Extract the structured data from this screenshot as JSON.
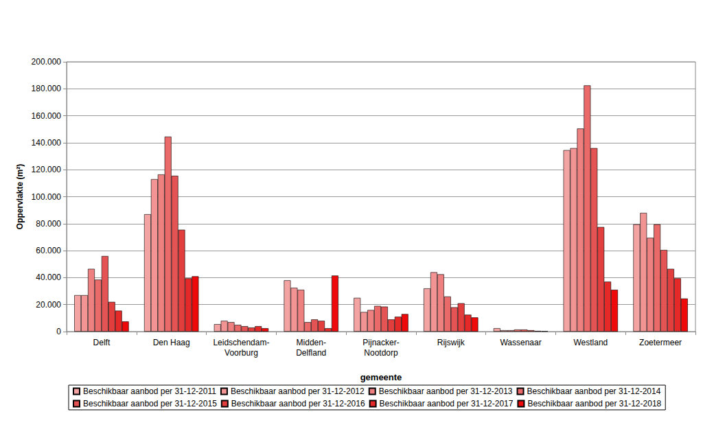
{
  "chart_data": {
    "type": "bar",
    "x_label": "gemeente",
    "y_label": "Oppervlakte (m²)",
    "categories": [
      "Delft",
      "Den Haag",
      "Leidschendam-\nVoorburg",
      "Midden-\nDelfland",
      "Pijnacker-\nNootdorp",
      "Rijswijk",
      "Wassenaar",
      "Westland",
      "Zoetermeer"
    ],
    "series": [
      {
        "name": "Beschikbaar aanbod per 31-12-2011",
        "color": "#f4a3a3",
        "values": [
          27000,
          87000,
          5500,
          38000,
          25000,
          32000,
          2500,
          134500,
          79500
        ]
      },
      {
        "name": "Beschikbaar aanbod per 31-12-2012",
        "color": "#f29494",
        "values": [
          27000,
          113000,
          8000,
          32500,
          14500,
          44000,
          1000,
          136000,
          88000
        ]
      },
      {
        "name": "Beschikbaar aanbod per 31-12-2013",
        "color": "#ee8080",
        "values": [
          46500,
          116500,
          7000,
          31000,
          16000,
          42500,
          1000,
          150500,
          69500
        ]
      },
      {
        "name": "Beschikbaar aanbod per 31-12-2014",
        "color": "#ea6a6a",
        "values": [
          38500,
          144500,
          5000,
          7000,
          19000,
          26000,
          1500,
          182500,
          79500
        ]
      },
      {
        "name": "Beschikbaar aanbod per 31-12-2015",
        "color": "#e55454",
        "values": [
          56000,
          115500,
          4000,
          9000,
          18500,
          18000,
          1500,
          136000,
          60500
        ]
      },
      {
        "name": "Beschikbaar aanbod per 31-12-2016",
        "color": "#e23e3e",
        "values": [
          22000,
          75500,
          3000,
          8000,
          9000,
          21000,
          1000,
          77500,
          46500
        ]
      },
      {
        "name": "Beschikbaar aanbod per 31-12-2017",
        "color": "#e52828",
        "values": [
          15500,
          39500,
          4000,
          2500,
          11000,
          12500,
          500,
          37000,
          39500
        ]
      },
      {
        "name": "Beschikbaar aanbod per 31-12-2018",
        "color": "#ee0a0a",
        "values": [
          7500,
          41000,
          2500,
          41500,
          13000,
          10500,
          300,
          31000,
          24500
        ]
      }
    ],
    "ylim": [
      0,
      200000
    ],
    "yticks": [
      0,
      {
        "value": 20000,
        "label": "20.000"
      },
      {
        "value": 40000,
        "label": "40.000"
      },
      {
        "value": 60000,
        "label": "60.000"
      },
      {
        "value": 80000,
        "label": "80.000"
      },
      {
        "value": 100000,
        "label": "100.000"
      },
      {
        "value": 120000,
        "label": "120.000"
      },
      {
        "value": 140000,
        "label": "140.000"
      },
      {
        "value": 160000,
        "label": "160.000"
      },
      {
        "value": 180000,
        "label": "180.000"
      },
      {
        "value": 200000,
        "label": "200.000"
      }
    ],
    "grid": true,
    "legend": "bottom"
  }
}
